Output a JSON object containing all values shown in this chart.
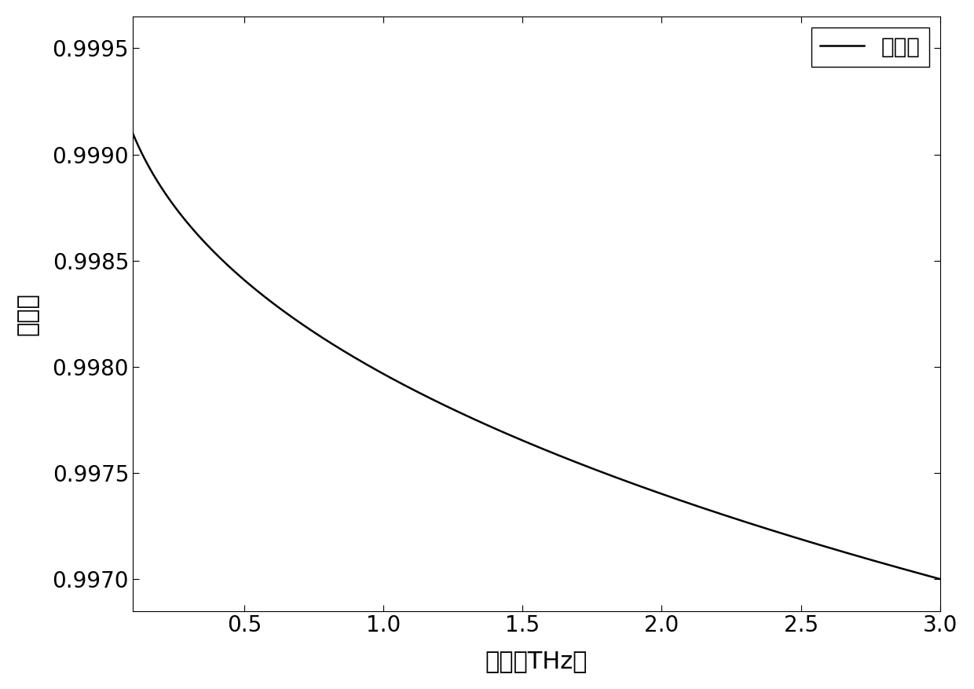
{
  "xlabel": "频率（THz）",
  "ylabel": "反射率",
  "legend_label": "反射率",
  "line_color": "#000000",
  "line_width": 1.8,
  "background_color": "#ffffff",
  "xlim": [
    0.1,
    3.0
  ],
  "ylim": [
    0.99685,
    0.99965
  ],
  "xticks": [
    0.5,
    1.0,
    1.5,
    2.0,
    2.5,
    3.0
  ],
  "yticks": [
    0.997,
    0.9975,
    0.998,
    0.9985,
    0.999,
    0.9995
  ],
  "ytick_labels": [
    "0.9970",
    "0.9975",
    "0.9980",
    "0.9985",
    "0.9990",
    "0.9995"
  ],
  "xtick_labels": [
    "0.5",
    "1.0",
    "1.5",
    "2.0",
    "2.5",
    "3.0"
  ],
  "font_size": 22,
  "tick_font_size": 20,
  "legend_font_size": 20,
  "curve_start_y": 0.9991,
  "curve_end_y": 0.997,
  "curve_start_x": 0.1,
  "curve_end_x": 3.0
}
